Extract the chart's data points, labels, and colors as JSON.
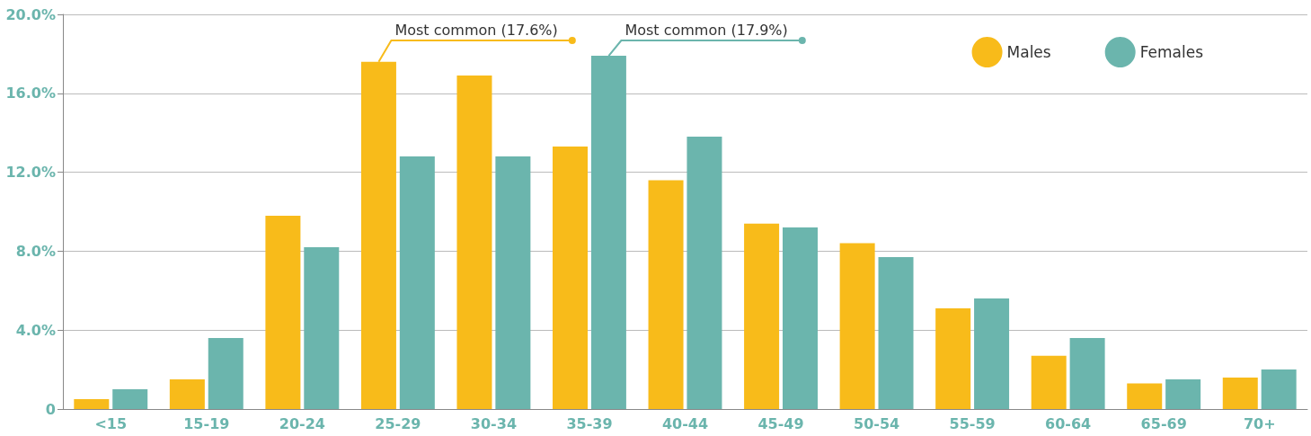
{
  "chart_data": {
    "type": "bar",
    "categories": [
      "<15",
      "15-19",
      "20-24",
      "25-29",
      "30-34",
      "35-39",
      "40-44",
      "45-49",
      "50-54",
      "55-59",
      "60-64",
      "65-69",
      "70+"
    ],
    "series": [
      {
        "name": "Males",
        "color": "#f8bb1a",
        "values": [
          0.5,
          1.5,
          9.8,
          17.6,
          16.9,
          13.3,
          11.6,
          9.4,
          8.4,
          5.1,
          2.7,
          1.3,
          1.6
        ]
      },
      {
        "name": "Females",
        "color": "#6bb5ad",
        "values": [
          1.0,
          3.6,
          8.2,
          12.8,
          12.8,
          17.9,
          13.8,
          9.2,
          7.7,
          5.6,
          3.6,
          1.5,
          2.0
        ]
      }
    ],
    "ylim": [
      0,
      20
    ],
    "yticks": [
      0,
      {
        "value": 4,
        "label": "4.0%"
      },
      {
        "value": 8,
        "label": "8.0%"
      },
      {
        "value": 12,
        "label": "12.0%"
      },
      {
        "value": 16,
        "label": "16.0%"
      },
      {
        "value": 20,
        "label": "20.0%"
      }
    ],
    "grid": "y",
    "legend": "top right",
    "annotations": [
      {
        "text": "Most common (17.6%)",
        "x": "25-29",
        "y": 17.6
      },
      {
        "text": "Most common (17.9%)",
        "x": "35-39",
        "y": 17.9
      }
    ]
  }
}
